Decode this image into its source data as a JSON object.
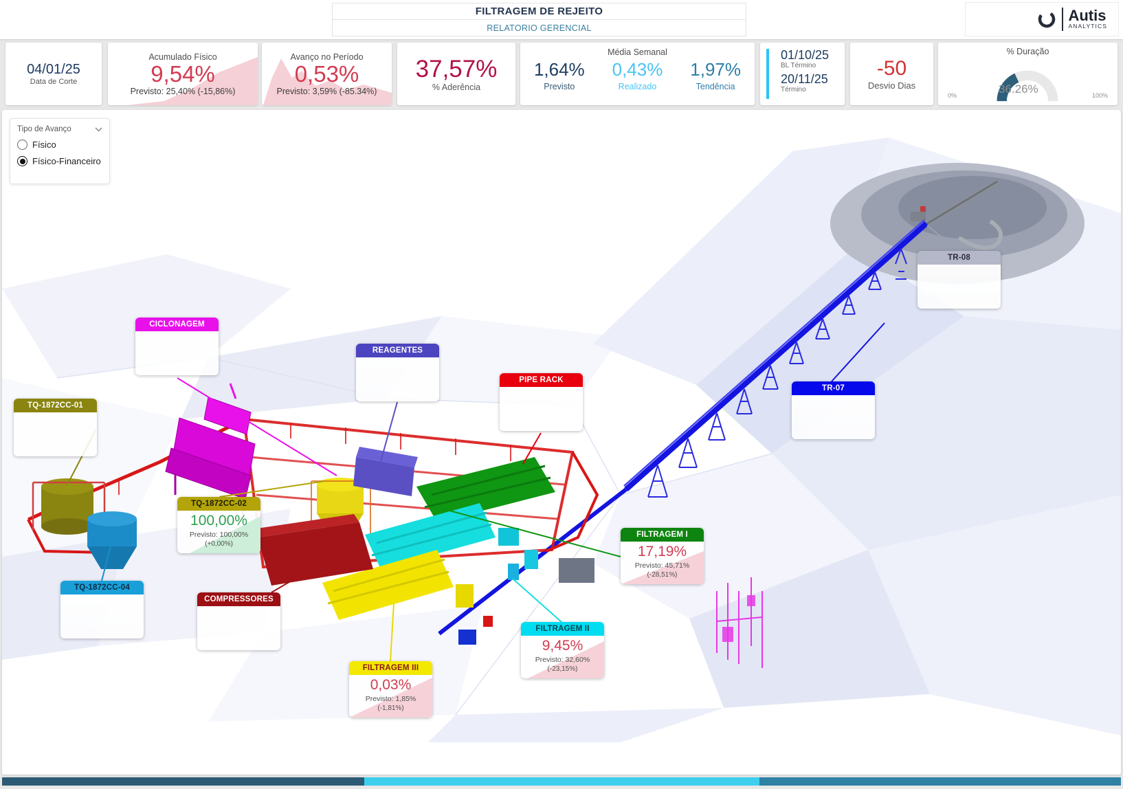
{
  "header": {
    "title": "FILTRAGEM DE REJEITO",
    "subtitle": "RELATORIO GERENCIAL",
    "logo": {
      "name": "Autis",
      "sub": "ANALYTICS"
    }
  },
  "kpis": {
    "data_corte": {
      "value": "04/01/25",
      "label": "Data de Corte"
    },
    "acumulado": {
      "label": "Acumulado Físico",
      "value": "9,54%",
      "sub": "Previsto: 25,40% (-15,86%)"
    },
    "avanco": {
      "label": "Avanço no Período",
      "value": "0,53%",
      "sub": "Previsto: 3,59% (-85.34%)"
    },
    "aderencia": {
      "value": "37,57%",
      "label": "% Aderência"
    },
    "media_semanal": {
      "label": "Média Semanal",
      "previsto": {
        "value": "1,64%",
        "label": "Previsto"
      },
      "realizado": {
        "value": "0,43%",
        "label": "Realizado"
      },
      "tendencia": {
        "value": "1,97%",
        "label": "Tendência"
      }
    },
    "termino": {
      "bl_date": "01/10/25",
      "bl_label": "BL Término",
      "date": "20/11/25",
      "label": "Término"
    },
    "desvio": {
      "value": "-50",
      "label": "Desvio Dias"
    },
    "duracao": {
      "label": "% Duração",
      "value": "36.26%",
      "min": "0%",
      "max": "100%",
      "percent": 36.26,
      "arc_color": "#2d5f7a"
    }
  },
  "filter": {
    "label": "Tipo de Avanço",
    "options": [
      {
        "label": "Físico",
        "selected": false
      },
      {
        "label": "Físico-Financeiro",
        "selected": true
      }
    ]
  },
  "callouts": {
    "tq01": {
      "title": "TQ-1872CC-01",
      "color": "#8a8410"
    },
    "ciclonagem": {
      "title": "CICLONAGEM",
      "color": "#e911e9"
    },
    "reagentes": {
      "title": "REAGENTES",
      "color": "#4d44bf"
    },
    "pipe_rack": {
      "title": "PIPE RACK",
      "color": "#e8000d"
    },
    "tr08": {
      "title": "TR-08",
      "color": "#b4b7c8"
    },
    "tr07": {
      "title": "TR-07",
      "color": "#0508eb"
    },
    "tq02": {
      "title": "TQ-1872CC-02",
      "color": "#b3a409",
      "value": "100,00%",
      "previsto": "Previsto: 100,00%",
      "delta": "(+0,00%)"
    },
    "tq04": {
      "title": "TQ-1872CC-04",
      "color": "#19a0d8"
    },
    "compressores": {
      "title": "COMPRESSORES",
      "color": "#9c0f13"
    },
    "filtragem1": {
      "title": "FILTRAGEM I",
      "color": "#0e8410",
      "value": "17,19%",
      "previsto": "Previsto: 45,71%",
      "delta": "(-28,51%)"
    },
    "filtragem2": {
      "title": "FILTRAGEM II",
      "color": "#00dcf0",
      "value": "9,45%",
      "previsto": "Previsto: 32,60%",
      "delta": "(-23,15%)"
    },
    "filtragem3": {
      "title": "FILTRAGEM III",
      "color": "#f3e800",
      "value": "0,03%",
      "previsto": "Previsto: 1,85%",
      "delta": "(-1,81%)"
    }
  },
  "footer_bar": {
    "segments": [
      {
        "color": "#2d5a74",
        "width_pct": 32.4
      },
      {
        "color": "#3ecfee",
        "width_pct": 35.3
      },
      {
        "color": "#2e82a4",
        "width_pct": 32.3
      }
    ]
  }
}
